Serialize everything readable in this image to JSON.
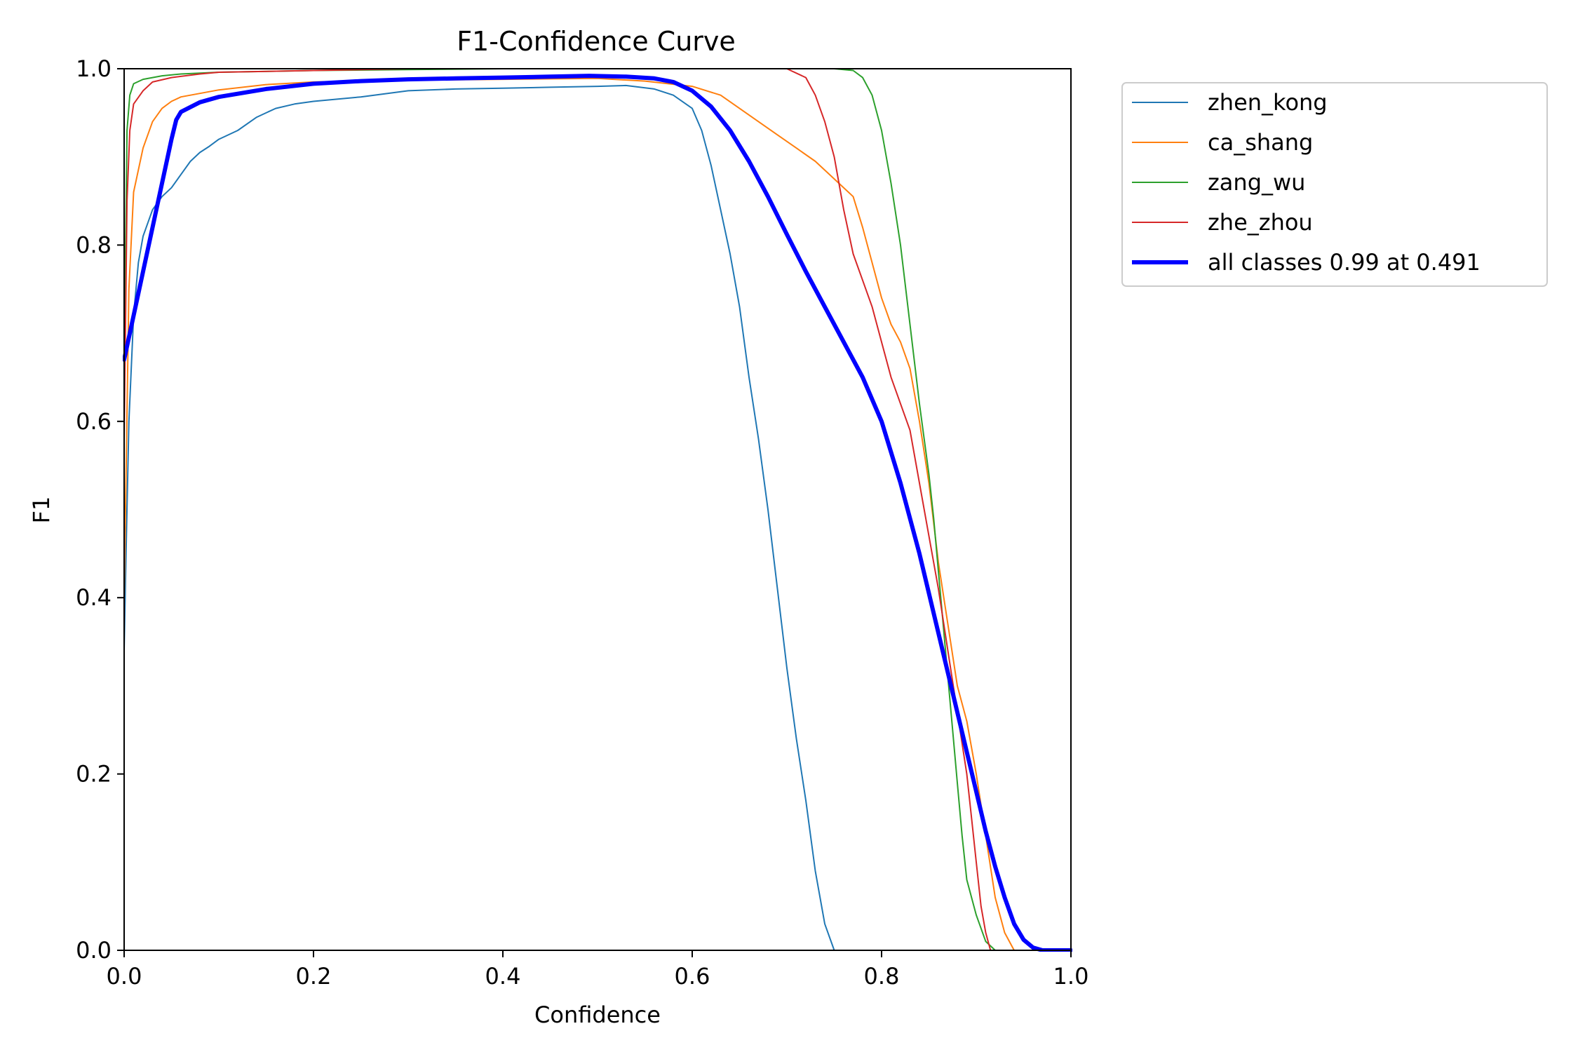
{
  "chart_data": {
    "type": "line",
    "title": "F1-Confidence Curve",
    "xlabel": "Confidence",
    "ylabel": "F1",
    "xlim": [
      0,
      1
    ],
    "ylim": [
      0,
      1
    ],
    "grid": false,
    "legend_position": "outside-top-right",
    "xticks": [
      {
        "value": 0.0,
        "label": "0.0"
      },
      {
        "value": 0.2,
        "label": "0.2"
      },
      {
        "value": 0.4,
        "label": "0.4"
      },
      {
        "value": 0.6,
        "label": "0.6"
      },
      {
        "value": 0.8,
        "label": "0.8"
      },
      {
        "value": 1.0,
        "label": "1.0"
      }
    ],
    "yticks": [
      {
        "value": 0.0,
        "label": "0.0"
      },
      {
        "value": 0.2,
        "label": "0.2"
      },
      {
        "value": 0.4,
        "label": "0.4"
      },
      {
        "value": 0.6,
        "label": "0.6"
      },
      {
        "value": 0.8,
        "label": "0.8"
      },
      {
        "value": 1.0,
        "label": "1.0"
      }
    ],
    "series": [
      {
        "name": "zhen_kong",
        "label": "zhen_kong",
        "color": "#1f77b4",
        "width": 2,
        "points": [
          [
            0,
            0.34
          ],
          [
            0.002,
            0.45
          ],
          [
            0.005,
            0.6
          ],
          [
            0.01,
            0.72
          ],
          [
            0.015,
            0.78
          ],
          [
            0.02,
            0.81
          ],
          [
            0.03,
            0.84
          ],
          [
            0.04,
            0.855
          ],
          [
            0.05,
            0.865
          ],
          [
            0.06,
            0.88
          ],
          [
            0.07,
            0.895
          ],
          [
            0.08,
            0.905
          ],
          [
            0.09,
            0.912
          ],
          [
            0.1,
            0.92
          ],
          [
            0.12,
            0.93
          ],
          [
            0.14,
            0.945
          ],
          [
            0.16,
            0.955
          ],
          [
            0.18,
            0.96
          ],
          [
            0.2,
            0.963
          ],
          [
            0.25,
            0.968
          ],
          [
            0.3,
            0.975
          ],
          [
            0.35,
            0.977
          ],
          [
            0.4,
            0.978
          ],
          [
            0.45,
            0.979
          ],
          [
            0.5,
            0.98
          ],
          [
            0.53,
            0.981
          ],
          [
            0.56,
            0.977
          ],
          [
            0.58,
            0.97
          ],
          [
            0.6,
            0.955
          ],
          [
            0.61,
            0.93
          ],
          [
            0.62,
            0.89
          ],
          [
            0.63,
            0.84
          ],
          [
            0.64,
            0.79
          ],
          [
            0.65,
            0.73
          ],
          [
            0.66,
            0.65
          ],
          [
            0.67,
            0.58
          ],
          [
            0.68,
            0.5
          ],
          [
            0.69,
            0.41
          ],
          [
            0.7,
            0.32
          ],
          [
            0.71,
            0.24
          ],
          [
            0.72,
            0.17
          ],
          [
            0.73,
            0.09
          ],
          [
            0.74,
            0.03
          ],
          [
            0.75,
            0.0
          ],
          [
            1.0,
            0.0
          ]
        ]
      },
      {
        "name": "ca_shang",
        "label": "ca_shang",
        "color": "#ff7f0e",
        "width": 2,
        "points": [
          [
            0,
            0.4
          ],
          [
            0.005,
            0.75
          ],
          [
            0.01,
            0.86
          ],
          [
            0.02,
            0.91
          ],
          [
            0.03,
            0.94
          ],
          [
            0.04,
            0.955
          ],
          [
            0.05,
            0.963
          ],
          [
            0.06,
            0.968
          ],
          [
            0.08,
            0.972
          ],
          [
            0.1,
            0.976
          ],
          [
            0.15,
            0.982
          ],
          [
            0.2,
            0.985
          ],
          [
            0.3,
            0.987
          ],
          [
            0.4,
            0.988
          ],
          [
            0.5,
            0.989
          ],
          [
            0.55,
            0.986
          ],
          [
            0.6,
            0.98
          ],
          [
            0.63,
            0.97
          ],
          [
            0.65,
            0.955
          ],
          [
            0.67,
            0.94
          ],
          [
            0.69,
            0.925
          ],
          [
            0.71,
            0.91
          ],
          [
            0.73,
            0.895
          ],
          [
            0.75,
            0.875
          ],
          [
            0.77,
            0.855
          ],
          [
            0.78,
            0.82
          ],
          [
            0.79,
            0.78
          ],
          [
            0.8,
            0.74
          ],
          [
            0.81,
            0.71
          ],
          [
            0.82,
            0.69
          ],
          [
            0.83,
            0.66
          ],
          [
            0.84,
            0.6
          ],
          [
            0.85,
            0.53
          ],
          [
            0.86,
            0.44
          ],
          [
            0.87,
            0.37
          ],
          [
            0.88,
            0.3
          ],
          [
            0.89,
            0.26
          ],
          [
            0.9,
            0.2
          ],
          [
            0.91,
            0.13
          ],
          [
            0.92,
            0.06
          ],
          [
            0.93,
            0.02
          ],
          [
            0.94,
            0.0
          ],
          [
            1.0,
            0.0
          ]
        ]
      },
      {
        "name": "zang_wu",
        "label": "zang_wu",
        "color": "#2ca02c",
        "width": 2,
        "points": [
          [
            0,
            0.66
          ],
          [
            0.003,
            0.93
          ],
          [
            0.006,
            0.97
          ],
          [
            0.01,
            0.983
          ],
          [
            0.02,
            0.988
          ],
          [
            0.04,
            0.992
          ],
          [
            0.06,
            0.994
          ],
          [
            0.1,
            0.996
          ],
          [
            0.2,
            0.998
          ],
          [
            0.3,
            0.999
          ],
          [
            0.4,
            1.0
          ],
          [
            0.5,
            1.0
          ],
          [
            0.6,
            1.0
          ],
          [
            0.7,
            1.0
          ],
          [
            0.75,
            1.0
          ],
          [
            0.77,
            0.998
          ],
          [
            0.78,
            0.99
          ],
          [
            0.79,
            0.97
          ],
          [
            0.8,
            0.93
          ],
          [
            0.81,
            0.87
          ],
          [
            0.82,
            0.8
          ],
          [
            0.83,
            0.71
          ],
          [
            0.84,
            0.62
          ],
          [
            0.85,
            0.54
          ],
          [
            0.855,
            0.49
          ],
          [
            0.86,
            0.43
          ],
          [
            0.865,
            0.37
          ],
          [
            0.87,
            0.31
          ],
          [
            0.875,
            0.25
          ],
          [
            0.88,
            0.19
          ],
          [
            0.885,
            0.13
          ],
          [
            0.89,
            0.08
          ],
          [
            0.9,
            0.04
          ],
          [
            0.91,
            0.01
          ],
          [
            0.92,
            0.0
          ],
          [
            1.0,
            0.0
          ]
        ]
      },
      {
        "name": "zhe_zhou",
        "label": "zhe_zhou",
        "color": "#d62728",
        "width": 2,
        "points": [
          [
            0,
            0.58
          ],
          [
            0.003,
            0.85
          ],
          [
            0.006,
            0.93
          ],
          [
            0.01,
            0.96
          ],
          [
            0.02,
            0.975
          ],
          [
            0.03,
            0.985
          ],
          [
            0.05,
            0.99
          ],
          [
            0.08,
            0.994
          ],
          [
            0.1,
            0.996
          ],
          [
            0.2,
            0.998
          ],
          [
            0.3,
            1.0
          ],
          [
            0.4,
            1.0
          ],
          [
            0.5,
            1.0
          ],
          [
            0.6,
            1.0
          ],
          [
            0.7,
            1.0
          ],
          [
            0.72,
            0.99
          ],
          [
            0.73,
            0.97
          ],
          [
            0.74,
            0.94
          ],
          [
            0.75,
            0.9
          ],
          [
            0.76,
            0.84
          ],
          [
            0.77,
            0.79
          ],
          [
            0.78,
            0.76
          ],
          [
            0.79,
            0.73
          ],
          [
            0.8,
            0.69
          ],
          [
            0.81,
            0.65
          ],
          [
            0.82,
            0.62
          ],
          [
            0.83,
            0.59
          ],
          [
            0.84,
            0.53
          ],
          [
            0.85,
            0.47
          ],
          [
            0.86,
            0.41
          ],
          [
            0.87,
            0.34
          ],
          [
            0.88,
            0.27
          ],
          [
            0.89,
            0.2
          ],
          [
            0.895,
            0.15
          ],
          [
            0.9,
            0.1
          ],
          [
            0.905,
            0.05
          ],
          [
            0.91,
            0.02
          ],
          [
            0.915,
            0.0
          ],
          [
            1.0,
            0.0
          ]
        ]
      },
      {
        "name": "all classes",
        "label": "all classes 0.99 at 0.491",
        "color": "#0000ff",
        "width": 6,
        "points": [
          [
            0,
            0.67
          ],
          [
            0.01,
            0.72
          ],
          [
            0.02,
            0.77
          ],
          [
            0.03,
            0.82
          ],
          [
            0.04,
            0.87
          ],
          [
            0.05,
            0.92
          ],
          [
            0.055,
            0.942
          ],
          [
            0.06,
            0.951
          ],
          [
            0.08,
            0.962
          ],
          [
            0.1,
            0.968
          ],
          [
            0.15,
            0.977
          ],
          [
            0.2,
            0.983
          ],
          [
            0.25,
            0.986
          ],
          [
            0.3,
            0.988
          ],
          [
            0.35,
            0.989
          ],
          [
            0.4,
            0.99
          ],
          [
            0.45,
            0.991
          ],
          [
            0.491,
            0.992
          ],
          [
            0.53,
            0.991
          ],
          [
            0.56,
            0.989
          ],
          [
            0.58,
            0.985
          ],
          [
            0.6,
            0.975
          ],
          [
            0.62,
            0.957
          ],
          [
            0.64,
            0.93
          ],
          [
            0.66,
            0.895
          ],
          [
            0.68,
            0.855
          ],
          [
            0.7,
            0.812
          ],
          [
            0.72,
            0.77
          ],
          [
            0.74,
            0.73
          ],
          [
            0.76,
            0.69
          ],
          [
            0.78,
            0.65
          ],
          [
            0.8,
            0.6
          ],
          [
            0.82,
            0.53
          ],
          [
            0.84,
            0.45
          ],
          [
            0.86,
            0.36
          ],
          [
            0.88,
            0.27
          ],
          [
            0.9,
            0.18
          ],
          [
            0.91,
            0.135
          ],
          [
            0.92,
            0.095
          ],
          [
            0.93,
            0.06
          ],
          [
            0.94,
            0.03
          ],
          [
            0.95,
            0.012
          ],
          [
            0.96,
            0.003
          ],
          [
            0.97,
            0.0
          ],
          [
            1.0,
            0.0
          ]
        ]
      }
    ]
  }
}
